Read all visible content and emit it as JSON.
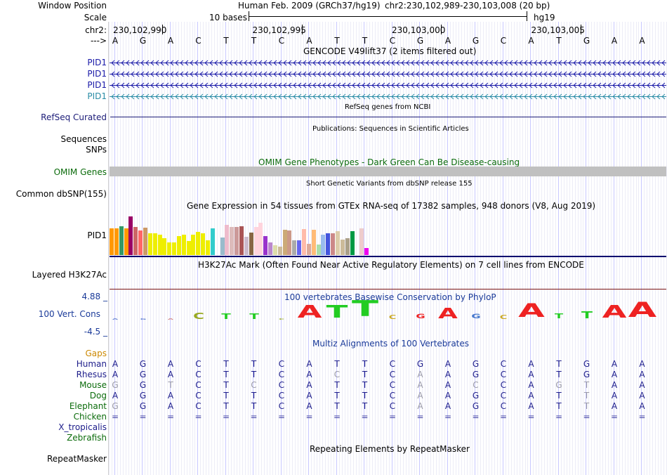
{
  "header": {
    "window_position_label": "Window Position",
    "assembly_text": "Human Feb. 2009 (GRCh37/hg19)",
    "position_text": "chr2:230,102,989-230,103,008 (20 bp)",
    "scale_label": "Scale",
    "scale_text": "10 bases",
    "scale_db": "hg19",
    "chrom_label": "chr2:",
    "coords": [
      "230,102,990",
      "230,102,995",
      "230,103,000",
      "230,103,005"
    ],
    "strand_label": "--->",
    "bases": [
      "A",
      "G",
      "A",
      "C",
      "T",
      "T",
      "C",
      "A",
      "T",
      "T",
      "C",
      "G",
      "A",
      "G",
      "C",
      "A",
      "T",
      "G",
      "A",
      "A"
    ]
  },
  "tracks": {
    "gencode": {
      "title": "GENCODE V49lift37 (2 items filtered out)",
      "genes": [
        {
          "label": "PID1",
          "color": "#1a1aa8"
        },
        {
          "label": "PID1",
          "color": "#1a1aa8"
        },
        {
          "label": "PID1",
          "color": "#1a1aa8"
        },
        {
          "label": "PID1",
          "color": "#2a8ca6"
        }
      ]
    },
    "refseq": {
      "label": "RefSeq Curated",
      "title": "RefSeq genes from NCBI",
      "color": "#1c1c78"
    },
    "publications": {
      "title": "Publications: Sequences in Scientific Articles",
      "label_sequences": "Sequences",
      "label_snps": "SNPs"
    },
    "omim": {
      "label": "OMIM Genes",
      "title": "OMIM Gene Phenotypes - Dark Green Can Be Disease-causing",
      "color": "#0b6b0b",
      "bar_color": "#c0c0c0"
    },
    "dbsnp": {
      "label": "Common dbSNP(155)",
      "title": "Short Genetic Variants from dbSNP release 155"
    },
    "gtex": {
      "title": "Gene Expression in 54 tissues from GTEx RNA-seq of 17382 samples, 948 donors (V8, Aug 2019)",
      "label": "PID1",
      "bars": [
        {
          "v": 0.38,
          "c": "#ff9900"
        },
        {
          "v": 0.38,
          "c": "#ff9900"
        },
        {
          "v": 0.41,
          "c": "#339966"
        },
        {
          "v": 0.38,
          "c": "#ff9900"
        },
        {
          "v": 0.55,
          "c": "#990066"
        },
        {
          "v": 0.4,
          "c": "#cc6666"
        },
        {
          "v": 0.35,
          "c": "#ff6666"
        },
        {
          "v": 0.39,
          "c": "#cc9966"
        },
        {
          "v": 0.31,
          "c": "#eeee00"
        },
        {
          "v": 0.31,
          "c": "#eeee00"
        },
        {
          "v": 0.29,
          "c": "#eeee00"
        },
        {
          "v": 0.24,
          "c": "#eeee00"
        },
        {
          "v": 0.18,
          "c": "#eeee00"
        },
        {
          "v": 0.18,
          "c": "#eeee00"
        },
        {
          "v": 0.27,
          "c": "#eeee00"
        },
        {
          "v": 0.29,
          "c": "#eeee00"
        },
        {
          "v": 0.2,
          "c": "#eeee00"
        },
        {
          "v": 0.29,
          "c": "#eeee00"
        },
        {
          "v": 0.33,
          "c": "#eeee00"
        },
        {
          "v": 0.31,
          "c": "#eeee00"
        },
        {
          "v": 0.21,
          "c": "#eeee00"
        },
        {
          "v": 0.38,
          "c": "#33cccc"
        },
        {
          "v": 0.0,
          "c": "#ffffff"
        },
        {
          "v": 0.25,
          "c": "#99bbcc"
        },
        {
          "v": 0.43,
          "c": "#eebbcc"
        },
        {
          "v": 0.4,
          "c": "#ddbbbb"
        },
        {
          "v": 0.4,
          "c": "#cc9999"
        },
        {
          "v": 0.41,
          "c": "#aa5555"
        },
        {
          "v": 0.26,
          "c": "#ccbbcc"
        },
        {
          "v": 0.32,
          "c": "#886644"
        },
        {
          "v": 0.4,
          "c": "#ffd4dd"
        },
        {
          "v": 0.46,
          "c": "#ffd4dd"
        },
        {
          "v": 0.27,
          "c": "#9933cc"
        },
        {
          "v": 0.18,
          "c": "#bb88cc"
        },
        {
          "v": 0.14,
          "c": "#ddddaa"
        },
        {
          "v": 0.12,
          "c": "#ccbb99"
        },
        {
          "v": 0.36,
          "c": "#ccaa77"
        },
        {
          "v": 0.35,
          "c": "#cc9988"
        },
        {
          "v": 0.21,
          "c": "#aaaaaa"
        },
        {
          "v": 0.21,
          "c": "#6666ee"
        },
        {
          "v": 0.37,
          "c": "#ffbbaa"
        },
        {
          "v": 0.16,
          "c": "#ddaa99"
        },
        {
          "v": 0.36,
          "c": "#ffbb77"
        },
        {
          "v": 0.15,
          "c": "#aaddaa"
        },
        {
          "v": 0.29,
          "c": "#99bbee"
        },
        {
          "v": 0.31,
          "c": "#4455dd"
        },
        {
          "v": 0.31,
          "c": "#cc8888"
        },
        {
          "v": 0.34,
          "c": "#ddccaa"
        },
        {
          "v": 0.22,
          "c": "#ccbb99"
        },
        {
          "v": 0.24,
          "c": "#aaa088"
        },
        {
          "v": 0.34,
          "c": "#009944"
        },
        {
          "v": 0.0,
          "c": "#ffffff"
        },
        {
          "v": 0.38,
          "c": "#eecccc"
        },
        {
          "v": 0.1,
          "c": "#ee00ee"
        }
      ]
    },
    "h3k27ac": {
      "label": "Layered H3K27Ac",
      "title": "H3K27Ac Mark (Often Found Near Active Regulatory Elements) on 7 cell lines from ENCODE",
      "line_color": "#7a1414"
    },
    "phylop": {
      "label": "100 Vert. Cons",
      "title": "100 vertebrates Basewise Conservation by PhyloP",
      "max": "4.88 _",
      "min": "-4.5 _",
      "label_color": "#1a3a99",
      "scores": [
        {
          "b": "A",
          "h": 0.02,
          "c": "#5577cc"
        },
        {
          "b": "G",
          "h": 0.08,
          "c": "#5577cc"
        },
        {
          "b": "A",
          "h": 0.02,
          "c": "#cc7777"
        },
        {
          "b": "C",
          "h": 0.45,
          "c": "#99aa22"
        },
        {
          "b": "T",
          "h": 0.42,
          "c": "#22cc22"
        },
        {
          "b": "T",
          "h": 0.42,
          "c": "#22cc22"
        },
        {
          "b": "C",
          "h": 0.05,
          "c": "#99aa22"
        },
        {
          "b": "A",
          "h": 0.95,
          "c": "#ee2222"
        },
        {
          "b": "T",
          "h": 0.95,
          "c": "#22cc22"
        },
        {
          "b": "T",
          "h": 1.2,
          "c": "#22cc22"
        },
        {
          "b": "C",
          "h": 0.3,
          "c": "#ccaa22"
        },
        {
          "b": "G",
          "h": 0.35,
          "c": "#ee2222"
        },
        {
          "b": "A",
          "h": 0.75,
          "c": "#ee2222"
        },
        {
          "b": "G",
          "h": 0.35,
          "c": "#4477cc"
        },
        {
          "b": "C",
          "h": 0.3,
          "c": "#ccaa22"
        },
        {
          "b": "A",
          "h": 1.05,
          "c": "#ee2222"
        },
        {
          "b": "T",
          "h": 0.4,
          "c": "#22cc22"
        },
        {
          "b": "T",
          "h": 0.5,
          "c": "#22cc22"
        },
        {
          "b": "A",
          "h": 0.95,
          "c": "#ee2222"
        },
        {
          "b": "A",
          "h": 1.1,
          "c": "#ee2222"
        }
      ]
    },
    "gaps": {
      "label": "Gaps",
      "color": "#cc8800"
    },
    "multiz": {
      "title": "Multiz Alignments of 100 Vertebrates",
      "species": [
        {
          "name": "Human",
          "color": "#1c1c8a",
          "seq": [
            "A",
            "G",
            "A",
            "C",
            "T",
            "T",
            "C",
            "A",
            "T",
            "T",
            "C",
            "G",
            "A",
            "G",
            "C",
            "A",
            "T",
            "G",
            "A",
            "A"
          ],
          "dim": []
        },
        {
          "name": "Rhesus",
          "color": "#1c1c8a",
          "seq": [
            "A",
            "G",
            "A",
            "C",
            "T",
            "T",
            "C",
            "A",
            "C",
            "T",
            "C",
            "A",
            "A",
            "G",
            "C",
            "A",
            "T",
            "G",
            "A",
            "A"
          ],
          "dim": [
            8,
            11
          ]
        },
        {
          "name": "Mouse",
          "color": "#0b6b0b",
          "seq": [
            "G",
            "G",
            "T",
            "C",
            "T",
            "C",
            "C",
            "A",
            "T",
            "T",
            "C",
            "A",
            "A",
            "C",
            "C",
            "A",
            "G",
            "T",
            "A",
            "A"
          ],
          "dim": [
            0,
            2,
            5,
            11,
            13,
            16,
            17
          ]
        },
        {
          "name": "Dog",
          "color": "#0b6b0b",
          "seq": [
            "A",
            "G",
            "A",
            "C",
            "T",
            "T",
            "C",
            "A",
            "T",
            "T",
            "C",
            "A",
            "A",
            "G",
            "C",
            "A",
            "T",
            "T",
            "A",
            "A"
          ],
          "dim": [
            11,
            17
          ]
        },
        {
          "name": "Elephant",
          "color": "#0b6b0b",
          "seq": [
            "G",
            "G",
            "A",
            "C",
            "T",
            "T",
            "C",
            "A",
            "T",
            "T",
            "C",
            "A",
            "A",
            "G",
            "C",
            "A",
            "T",
            "T",
            "A",
            "A"
          ],
          "dim": [
            0,
            11,
            17
          ]
        },
        {
          "name": "Chicken",
          "color": "#0b6b0b",
          "seq": [
            "=",
            "=",
            "=",
            "=",
            "=",
            "=",
            "=",
            "=",
            "=",
            "=",
            "=",
            "=",
            "=",
            "=",
            "=",
            "=",
            "=",
            "=",
            "=",
            "="
          ],
          "dim": []
        },
        {
          "name": "X_tropicalis",
          "color": "#1c1c8a",
          "seq": [],
          "dim": []
        },
        {
          "name": "Zebrafish",
          "color": "#0b6b0b",
          "seq": [],
          "dim": []
        }
      ]
    },
    "repeatmasker": {
      "label": "RepeatMasker",
      "title": "Repeating Elements by RepeatMasker"
    }
  }
}
